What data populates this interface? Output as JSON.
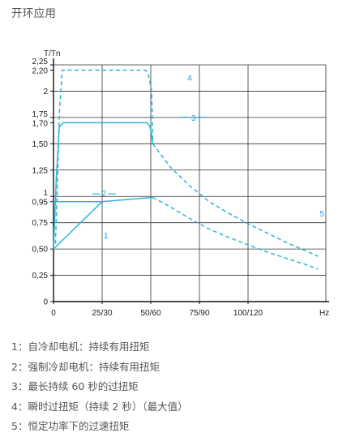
{
  "page": {
    "title": "开环应用"
  },
  "chart_data": {
    "type": "line",
    "ylabel": "T/Tn",
    "xlabel": "Hz",
    "xlim": [
      0,
      140
    ],
    "ylim": [
      0,
      2.25
    ],
    "x_ticks": [
      {
        "value": 0,
        "label": "0"
      },
      {
        "value": 25,
        "label": "25/30"
      },
      {
        "value": 50,
        "label": "50/60"
      },
      {
        "value": 75,
        "label": "75/90"
      },
      {
        "value": 100,
        "label": "100/120"
      }
    ],
    "y_ticks": [
      {
        "value": 0,
        "label": "0"
      },
      {
        "value": 0.25,
        "label": "0,25"
      },
      {
        "value": 0.5,
        "label": "0,50"
      },
      {
        "value": 0.75,
        "label": "0,75"
      },
      {
        "value": 0.95,
        "label": "0,95"
      },
      {
        "value": 1,
        "label": "1"
      },
      {
        "value": 1.25,
        "label": "1,25"
      },
      {
        "value": 1.5,
        "label": "1,50"
      },
      {
        "value": 1.7,
        "label": "1,70"
      },
      {
        "value": 1.75,
        "label": "1,75"
      },
      {
        "value": 2,
        "label": "2"
      },
      {
        "value": 2.2,
        "label": "2,20"
      },
      {
        "value": 2.25,
        "label": "2,25"
      }
    ],
    "grid": true,
    "color": "#2bb5d9",
    "series": [
      {
        "name": "1",
        "style": "solid",
        "points": [
          [
            0,
            0.5
          ],
          [
            25,
            0.95
          ],
          [
            51,
            0.99
          ]
        ],
        "label_at": [
          27,
          0.6
        ]
      },
      {
        "name": "2",
        "style": "solid",
        "points": [
          [
            0,
            0.95
          ],
          [
            25,
            0.95
          ]
        ],
        "label_at": [
          26,
          1.0
        ]
      },
      {
        "name": "3",
        "style": "solid",
        "points": [
          [
            0,
            0.5
          ],
          [
            1.5,
            1.2
          ],
          [
            3,
            1.66
          ],
          [
            5,
            1.7
          ],
          [
            48,
            1.7
          ],
          [
            49.5,
            1.67
          ],
          [
            50.3,
            1.6
          ],
          [
            51,
            1.5
          ]
        ],
        "label_at": [
          72,
          1.72
        ]
      },
      {
        "name": "4",
        "style": "dashed",
        "points": [
          [
            1,
            0.55
          ],
          [
            2,
            1.1
          ],
          [
            3,
            1.8
          ],
          [
            4.5,
            2.2
          ],
          [
            47,
            2.2
          ],
          [
            48.5,
            2.18
          ],
          [
            50.5,
            2.0
          ],
          [
            51,
            1.5
          ]
        ],
        "label_at": [
          70,
          2.1
        ]
      },
      {
        "name": "5",
        "style": "dashed",
        "points": [
          [
            51,
            1.5
          ],
          [
            60,
            1.28
          ],
          [
            70,
            1.1
          ],
          [
            80,
            0.95
          ],
          [
            90,
            0.84
          ],
          [
            100,
            0.74
          ],
          [
            110,
            0.65
          ],
          [
            120,
            0.56
          ],
          [
            130,
            0.48
          ],
          [
            136,
            0.43
          ]
        ],
        "label_at": [
          138,
          0.81
        ],
        "secondary_points": [
          [
            51,
            0.99
          ],
          [
            60,
            0.9
          ],
          [
            70,
            0.79
          ],
          [
            80,
            0.69
          ],
          [
            90,
            0.61
          ],
          [
            100,
            0.54
          ],
          [
            110,
            0.47
          ],
          [
            120,
            0.41
          ],
          [
            130,
            0.35
          ],
          [
            136,
            0.31
          ]
        ]
      }
    ]
  },
  "legend": {
    "items": [
      "1：自冷却电机：持续有用扭矩",
      "2：强制冷却电机：持续有用扭矩",
      "3：最长持续 60 秒的过扭矩",
      "4：瞬时过扭矩（持续 2 秒）（最大值）",
      "5：恒定功率下的过速扭矩"
    ]
  }
}
